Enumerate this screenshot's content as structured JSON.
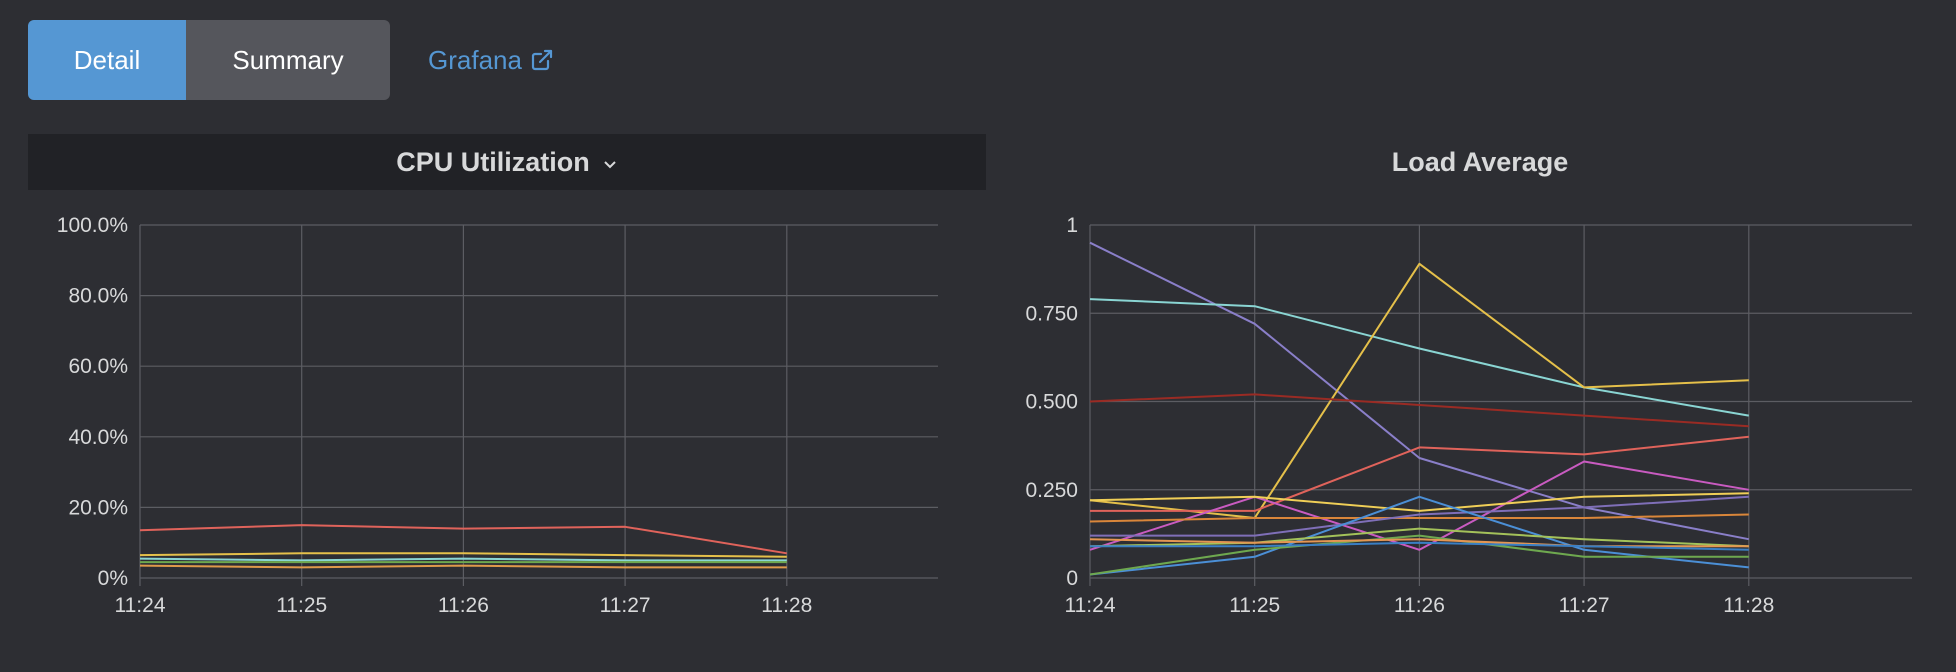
{
  "tabs": {
    "detail_label": "Detail",
    "summary_label": "Summary"
  },
  "links": {
    "grafana_label": "Grafana",
    "grafana_icon": "external-link-icon"
  },
  "panels": {
    "cpu": {
      "title": "CPU Utilization",
      "dropdown_icon": "chevron-down-icon"
    },
    "load": {
      "title": "Load Average"
    }
  },
  "theme": {
    "background": "#2d2e33",
    "accent": "#5597d3",
    "grid": "#5c5d63"
  },
  "chart_data": [
    {
      "type": "line",
      "title": "CPU Utilization",
      "categories": [
        "11:24",
        "11:25",
        "11:26",
        "11:27",
        "11:28"
      ],
      "ylim": [
        0,
        100
      ],
      "y_ticks": [
        "0%",
        "20.0%",
        "40.0%",
        "60.0%",
        "80.0%",
        "100.0%"
      ],
      "y_tick_values": [
        0,
        20,
        40,
        60,
        80,
        100
      ],
      "grid": true,
      "series": [
        {
          "color": "#e0635b",
          "values": [
            13.5,
            15,
            14,
            14.5,
            7
          ]
        },
        {
          "color": "#e5c04a",
          "values": [
            6.5,
            7,
            7,
            6.5,
            6
          ]
        },
        {
          "color": "#8ad5d3",
          "values": [
            5.5,
            5,
            5.5,
            5,
            5
          ]
        },
        {
          "color": "#6ea84f",
          "values": [
            4.5,
            4.5,
            4.5,
            4.5,
            4.5
          ]
        },
        {
          "color": "#e09a4a",
          "values": [
            3.5,
            3,
            3.5,
            3,
            3
          ]
        }
      ]
    },
    {
      "type": "line",
      "title": "Load Average",
      "categories": [
        "11:24",
        "11:25",
        "11:26",
        "11:27",
        "11:28"
      ],
      "ylim": [
        0,
        1
      ],
      "y_ticks": [
        "0",
        "0.250",
        "0.500",
        "0.750",
        "1"
      ],
      "y_tick_values": [
        0,
        0.25,
        0.5,
        0.75,
        1
      ],
      "grid": true,
      "series": [
        {
          "color": "#8a7fc9",
          "values": [
            0.95,
            0.72,
            0.34,
            0.2,
            0.11
          ]
        },
        {
          "color": "#8ad5d3",
          "values": [
            0.79,
            0.77,
            0.65,
            0.54,
            0.46
          ]
        },
        {
          "color": "#e5c04a",
          "values": [
            0.22,
            0.17,
            0.89,
            0.54,
            0.56
          ]
        },
        {
          "color": "#9a2b24",
          "values": [
            0.5,
            0.52,
            0.49,
            0.46,
            0.43
          ]
        },
        {
          "color": "#e0635b",
          "values": [
            0.19,
            0.19,
            0.37,
            0.35,
            0.4
          ]
        },
        {
          "color": "#c95bc1",
          "values": [
            0.08,
            0.23,
            0.08,
            0.33,
            0.25
          ]
        },
        {
          "color": "#f0cf57",
          "values": [
            0.22,
            0.23,
            0.19,
            0.23,
            0.24
          ]
        },
        {
          "color": "#d9863a",
          "values": [
            0.16,
            0.17,
            0.17,
            0.17,
            0.18
          ]
        },
        {
          "color": "#7f6fb8",
          "values": [
            0.12,
            0.12,
            0.18,
            0.2,
            0.23
          ]
        },
        {
          "color": "#4b8fd6",
          "values": [
            0.01,
            0.06,
            0.23,
            0.08,
            0.03
          ]
        },
        {
          "color": "#6ea84f",
          "values": [
            0.01,
            0.08,
            0.12,
            0.06,
            0.06
          ]
        },
        {
          "color": "#a4c25a",
          "values": [
            0.09,
            0.1,
            0.14,
            0.11,
            0.09
          ]
        },
        {
          "color": "#e39653",
          "values": [
            0.11,
            0.1,
            0.11,
            0.09,
            0.09
          ]
        },
        {
          "color": "#3a7fc4",
          "values": [
            0.09,
            0.09,
            0.1,
            0.09,
            0.08
          ]
        }
      ]
    }
  ]
}
